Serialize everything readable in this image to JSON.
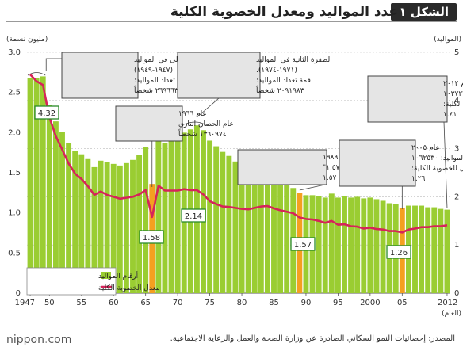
{
  "header": {
    "badge": "الشكل ١",
    "title": "عدد المواليد ومعدل الخصوبة الكلية"
  },
  "footer": {
    "logo_word": "nippon",
    "logo_sep": ".",
    "logo_tld": "com",
    "source": "المصدر: إحصائيات النمو السكاني الصادرة عن وزارة الصحة والعمل والرعاية الاجتماعية."
  },
  "colors": {
    "bar": "#9acd32",
    "highlight_bar": "#f4a020",
    "line": "#d6245a",
    "grid": "#bbbbbb",
    "callout_border": "#2a8a2a"
  },
  "chart_data": {
    "type": "bar",
    "left_axis": {
      "unit_label": "(مليون نسمة)",
      "ylim": [
        0,
        3.0
      ],
      "ticks": [
        "0",
        "0.5",
        "1.0",
        "1.5",
        "2.0",
        "2.5",
        "3.0"
      ]
    },
    "right_axis": {
      "unit_label": "(المواليد)",
      "ylim": [
        0,
        5
      ],
      "ticks": [
        "0",
        "1",
        "2",
        "3",
        "4",
        "5"
      ]
    },
    "x_label": "(العام)",
    "x_ticks": [
      "1947",
      "50",
      "55",
      "60",
      "65",
      "70",
      "75",
      "80",
      "85",
      "90",
      "95",
      "2000",
      "05",
      "2012"
    ],
    "x": [
      1947,
      1948,
      1949,
      1950,
      1951,
      1952,
      1953,
      1954,
      1955,
      1956,
      1957,
      1958,
      1959,
      1960,
      1961,
      1962,
      1963,
      1964,
      1965,
      1966,
      1967,
      1968,
      1969,
      1970,
      1971,
      1972,
      1973,
      1974,
      1975,
      1976,
      1977,
      1978,
      1979,
      1980,
      1981,
      1982,
      1983,
      1984,
      1985,
      1986,
      1987,
      1988,
      1989,
      1990,
      1991,
      1992,
      1993,
      1994,
      1995,
      1996,
      1997,
      1998,
      1999,
      2000,
      2001,
      2002,
      2003,
      2004,
      2005,
      2006,
      2007,
      2008,
      2009,
      2010,
      2011,
      2012
    ],
    "highlight_years": [
      1966,
      1989,
      2005
    ],
    "series": [
      {
        "name": "أرقام المواليد",
        "kind": "bar",
        "axis": "left",
        "values": [
          2.68,
          2.68,
          2.7,
          2.34,
          2.14,
          2.01,
          1.87,
          1.77,
          1.73,
          1.67,
          1.57,
          1.65,
          1.63,
          1.61,
          1.59,
          1.62,
          1.66,
          1.72,
          1.82,
          1.36,
          1.94,
          1.87,
          1.89,
          1.93,
          2.0,
          2.04,
          2.09,
          2.03,
          1.9,
          1.83,
          1.76,
          1.71,
          1.64,
          1.58,
          1.53,
          1.52,
          1.51,
          1.49,
          1.43,
          1.38,
          1.35,
          1.31,
          1.25,
          1.22,
          1.22,
          1.21,
          1.19,
          1.24,
          1.19,
          1.21,
          1.19,
          1.2,
          1.18,
          1.19,
          1.17,
          1.15,
          1.12,
          1.11,
          1.06,
          1.09,
          1.09,
          1.09,
          1.07,
          1.07,
          1.05,
          1.04
        ]
      },
      {
        "name": "معدل الخصوبة الكلية",
        "kind": "line",
        "axis": "right",
        "values": [
          4.54,
          4.4,
          4.32,
          3.65,
          3.26,
          2.98,
          2.69,
          2.48,
          2.37,
          2.22,
          2.04,
          2.11,
          2.04,
          2.0,
          1.96,
          1.98,
          2.0,
          2.05,
          2.14,
          1.58,
          2.23,
          2.13,
          2.13,
          2.13,
          2.16,
          2.14,
          2.14,
          2.05,
          1.91,
          1.85,
          1.8,
          1.79,
          1.77,
          1.75,
          1.74,
          1.77,
          1.8,
          1.81,
          1.76,
          1.72,
          1.69,
          1.66,
          1.57,
          1.54,
          1.53,
          1.5,
          1.46,
          1.5,
          1.42,
          1.43,
          1.39,
          1.38,
          1.34,
          1.36,
          1.33,
          1.32,
          1.29,
          1.29,
          1.26,
          1.32,
          1.34,
          1.37,
          1.37,
          1.39,
          1.39,
          1.41
        ]
      }
    ],
    "value_labels": [
      {
        "year": 1949,
        "text": "4.32"
      },
      {
        "year": 1966,
        "text": "1.58"
      },
      {
        "year": 1973,
        "text": "2.14"
      },
      {
        "year": 1989,
        "text": "1.57"
      },
      {
        "year": 2005,
        "text": "1.26"
      }
    ],
    "annotations": [
      {
        "id": "boom1",
        "lines": [
          "الطفرة الأولى في المواليد",
          "(١٩٤٧-١٩٤٩)",
          "قمة تعداد المواليد:",
          "٢٦٩٦٦٣٨ شخصاً"
        ]
      },
      {
        "id": "boom2",
        "lines": [
          "الطفرة الثانية في المواليد",
          "(١٩٧١-١٩٧٤).",
          "قمة تعداد المواليد:",
          "٢٠٩١٩٨٣ شخصاً"
        ]
      },
      {
        "id": "y2012",
        "lines": [
          "عام ٢٠١٢",
          "تعداد المواليد: ١٠٣٧٢٣١",
          "معدل الخصوبة الكلية:",
          "١.٤١"
        ]
      },
      {
        "id": "y1966",
        "lines": [
          "عام ١٩٦٦",
          "عام الحصان الناري",
          "١٣٦٠٩٧٤ شخصاً"
        ]
      },
      {
        "id": "y1989",
        "lines": [
          "عام ١٩٨٩",
          "صدمة \"١.٥٧\"",
          "معدل الخصوبة العامة ١.٥٧"
        ]
      },
      {
        "id": "y2005",
        "lines": [
          "عام ٢٠٠٥",
          "عدد المواليد: ١٠٦٢٥٣٠",
          "أقل معدل للخصوبة الكلية:",
          "١.٢٦"
        ]
      }
    ],
    "legend": {
      "placement": "bottom-left",
      "bar_label": "أرقام المواليد",
      "line_label": "معدل الخصوبة الكلية"
    }
  }
}
